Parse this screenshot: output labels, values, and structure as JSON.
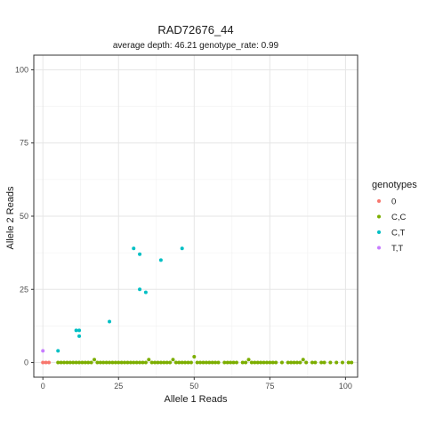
{
  "chart_data": {
    "type": "scatter",
    "title": "RAD72676_44",
    "subtitle": "average depth:  46.21  genotype_rate:  0.99",
    "xlabel": "Allele 1 Reads",
    "ylabel": "Allele 2 Reads",
    "xlim": [
      -3,
      104
    ],
    "ylim": [
      -5,
      105
    ],
    "xticks": [
      0,
      25,
      50,
      75,
      100
    ],
    "yticks": [
      0,
      25,
      50,
      75,
      100
    ],
    "grid": true,
    "legend": {
      "title": "genotypes",
      "placement": "right"
    },
    "series": [
      {
        "name": "0",
        "color": "#F8766D",
        "points": [
          [
            0,
            0
          ],
          [
            1,
            0
          ],
          [
            2,
            0
          ]
        ]
      },
      {
        "name": "C,C",
        "color": "#7CAE00",
        "points": [
          [
            5,
            0
          ],
          [
            6,
            0
          ],
          [
            7,
            0
          ],
          [
            8,
            0
          ],
          [
            9,
            0
          ],
          [
            10,
            0
          ],
          [
            11,
            0
          ],
          [
            12,
            0
          ],
          [
            13,
            0
          ],
          [
            14,
            0
          ],
          [
            15,
            0
          ],
          [
            16,
            0
          ],
          [
            17,
            1
          ],
          [
            18,
            0
          ],
          [
            19,
            0
          ],
          [
            20,
            0
          ],
          [
            21,
            0
          ],
          [
            22,
            0
          ],
          [
            23,
            0
          ],
          [
            24,
            0
          ],
          [
            25,
            0
          ],
          [
            26,
            0
          ],
          [
            27,
            0
          ],
          [
            28,
            0
          ],
          [
            29,
            0
          ],
          [
            30,
            0
          ],
          [
            31,
            0
          ],
          [
            32,
            0
          ],
          [
            33,
            0
          ],
          [
            34,
            0
          ],
          [
            35,
            1
          ],
          [
            36,
            0
          ],
          [
            37,
            0
          ],
          [
            38,
            0
          ],
          [
            39,
            0
          ],
          [
            40,
            0
          ],
          [
            41,
            0
          ],
          [
            42,
            0
          ],
          [
            43,
            1
          ],
          [
            44,
            0
          ],
          [
            45,
            0
          ],
          [
            46,
            0
          ],
          [
            47,
            0
          ],
          [
            48,
            0
          ],
          [
            49,
            0
          ],
          [
            50,
            2
          ],
          [
            51,
            0
          ],
          [
            52,
            0
          ],
          [
            53,
            0
          ],
          [
            54,
            0
          ],
          [
            55,
            0
          ],
          [
            56,
            0
          ],
          [
            57,
            0
          ],
          [
            58,
            0
          ],
          [
            60,
            0
          ],
          [
            61,
            0
          ],
          [
            62,
            0
          ],
          [
            63,
            0
          ],
          [
            64,
            0
          ],
          [
            66,
            0
          ],
          [
            67,
            0
          ],
          [
            68,
            1
          ],
          [
            69,
            0
          ],
          [
            70,
            0
          ],
          [
            71,
            0
          ],
          [
            72,
            0
          ],
          [
            73,
            0
          ],
          [
            74,
            0
          ],
          [
            75,
            0
          ],
          [
            76,
            0
          ],
          [
            77,
            0
          ],
          [
            79,
            0
          ],
          [
            81,
            0
          ],
          [
            82,
            0
          ],
          [
            83,
            0
          ],
          [
            84,
            0
          ],
          [
            85,
            0
          ],
          [
            86,
            1
          ],
          [
            87,
            0
          ],
          [
            89,
            0
          ],
          [
            90,
            0
          ],
          [
            92,
            0
          ],
          [
            93,
            0
          ],
          [
            95,
            0
          ],
          [
            97,
            0
          ],
          [
            99,
            0
          ],
          [
            101,
            0
          ],
          [
            102,
            0
          ]
        ]
      },
      {
        "name": "C,T",
        "color": "#00BFC4",
        "points": [
          [
            5,
            4
          ],
          [
            11,
            11
          ],
          [
            12,
            11
          ],
          [
            12,
            9
          ],
          [
            22,
            14
          ],
          [
            30,
            39
          ],
          [
            32,
            37
          ],
          [
            32,
            25
          ],
          [
            34,
            24
          ],
          [
            39,
            35
          ],
          [
            46,
            39
          ]
        ]
      },
      {
        "name": "T,T",
        "color": "#C77CFF",
        "points": [
          [
            0,
            4
          ]
        ]
      }
    ]
  }
}
